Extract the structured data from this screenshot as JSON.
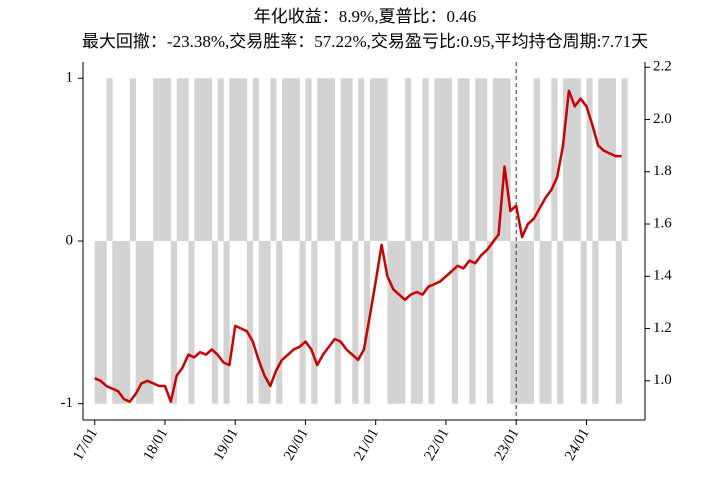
{
  "chart_data": {
    "type": "line",
    "title": "年化收益：8.9%,夏普比：0.46",
    "subtitle": "最大回撤：-23.38%,交易胜率：57.22%,交易盈亏比:0.95,平均持仓周期:7.71天",
    "x": [
      "17/01",
      "17/02",
      "17/03",
      "17/04",
      "17/05",
      "17/06",
      "17/07",
      "17/08",
      "17/09",
      "17/10",
      "17/11",
      "17/12",
      "18/01",
      "18/02",
      "18/03",
      "18/04",
      "18/05",
      "18/06",
      "18/07",
      "18/08",
      "18/09",
      "18/10",
      "18/11",
      "18/12",
      "19/01",
      "19/02",
      "19/03",
      "19/04",
      "19/05",
      "19/06",
      "19/07",
      "19/08",
      "19/09",
      "19/10",
      "19/11",
      "19/12",
      "20/01",
      "20/02",
      "20/03",
      "20/04",
      "20/05",
      "20/06",
      "20/07",
      "20/08",
      "20/09",
      "20/10",
      "20/11",
      "20/12",
      "21/01",
      "21/02",
      "21/03",
      "21/04",
      "21/05",
      "21/06",
      "21/07",
      "21/08",
      "21/09",
      "21/10",
      "21/11",
      "21/12",
      "22/01",
      "22/02",
      "22/03",
      "22/04",
      "22/05",
      "22/06",
      "22/07",
      "22/08",
      "22/09",
      "22/10",
      "22/11",
      "22/12",
      "23/01",
      "23/02",
      "23/03",
      "23/04",
      "23/05",
      "23/06",
      "23/07",
      "23/08",
      "23/09",
      "23/10",
      "23/11",
      "23/12",
      "24/01",
      "24/02",
      "24/03",
      "24/04",
      "24/05",
      "24/06",
      "24/07"
    ],
    "positions": {
      "color": "#d3d3d3",
      "values": [
        -1,
        -1,
        1,
        -1,
        -1,
        -1,
        1,
        -1,
        -1,
        -1,
        1,
        1,
        1,
        -1,
        1,
        1,
        -1,
        1,
        1,
        1,
        -1,
        1,
        -1,
        1,
        1,
        1,
        -1,
        1,
        -1,
        -1,
        1,
        -1,
        1,
        1,
        1,
        -1,
        1,
        -1,
        1,
        1,
        1,
        -1,
        1,
        1,
        -1,
        1,
        -1,
        1,
        1,
        1,
        -1,
        -1,
        -1,
        1,
        -1,
        -1,
        1,
        -1,
        1,
        1,
        1,
        -1,
        1,
        1,
        -1,
        1,
        1,
        -1,
        1,
        1,
        1,
        -1,
        -1,
        -1,
        -1,
        1,
        -1,
        -1,
        1,
        -1,
        1,
        1,
        1,
        -1,
        1,
        -1,
        1,
        1,
        1,
        -1,
        1
      ]
    },
    "series": [
      {
        "color": "#cc0000",
        "axis": "y2",
        "values": [
          1.01,
          1.0,
          0.98,
          0.97,
          0.96,
          0.93,
          0.92,
          0.95,
          0.99,
          1.0,
          0.99,
          0.98,
          0.98,
          0.92,
          1.02,
          1.05,
          1.1,
          1.09,
          1.11,
          1.1,
          1.12,
          1.1,
          1.07,
          1.06,
          1.21,
          1.2,
          1.19,
          1.15,
          1.08,
          1.02,
          0.98,
          1.04,
          1.08,
          1.1,
          1.12,
          1.13,
          1.15,
          1.12,
          1.06,
          1.1,
          1.13,
          1.16,
          1.15,
          1.12,
          1.1,
          1.08,
          1.12,
          1.25,
          1.38,
          1.52,
          1.4,
          1.35,
          1.33,
          1.31,
          1.33,
          1.34,
          1.33,
          1.36,
          1.37,
          1.38,
          1.4,
          1.42,
          1.44,
          1.43,
          1.46,
          1.45,
          1.48,
          1.5,
          1.53,
          1.56,
          1.82,
          1.65,
          1.67,
          1.55,
          1.6,
          1.62,
          1.66,
          1.7,
          1.73,
          1.78,
          1.9,
          2.11,
          2.05,
          2.08,
          2.05,
          1.98,
          1.9,
          1.88,
          1.87,
          1.86,
          1.86
        ]
      }
    ],
    "vline_x": "23/01",
    "xlim": [
      "16/11",
      "24/11"
    ],
    "xticks": [
      "17/01",
      "18/01",
      "19/01",
      "20/01",
      "21/01",
      "22/01",
      "23/01",
      "24/01"
    ],
    "ylim": [
      -1.1,
      1.1
    ],
    "yticks": [
      -1,
      0,
      1
    ],
    "y2lim": [
      0.85,
      2.22
    ],
    "y2ticks": [
      {
        "value": 1,
        "label": "1.0"
      },
      1.2,
      1.4,
      1.6,
      1.8,
      {
        "value": 2,
        "label": "2.0"
      },
      2.2
    ]
  }
}
